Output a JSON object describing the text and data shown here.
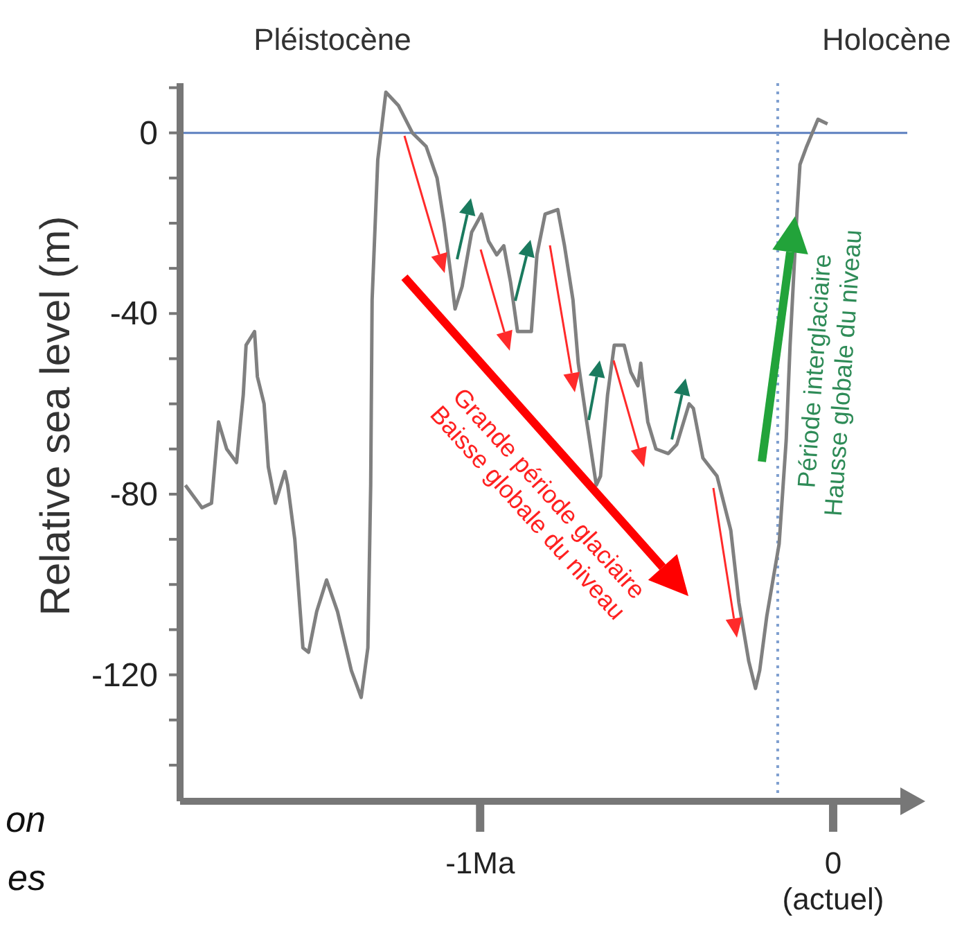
{
  "chart_data": {
    "type": "line",
    "ylabel": "Relative sea level (m)",
    "marker": "none",
    "color": "#808080",
    "x": [
      -1.835,
      -1.788,
      -1.761,
      -1.741,
      -1.718,
      -1.69,
      -1.671,
      -1.663,
      -1.639,
      -1.631,
      -1.612,
      -1.6,
      -1.58,
      -1.553,
      -1.545,
      -1.525,
      -1.502,
      -1.486,
      -1.463,
      -1.435,
      -1.404,
      -1.365,
      -1.337,
      -1.318,
      -1.31,
      -1.306,
      -1.29,
      -1.267,
      -1.231,
      -1.192,
      -1.153,
      -1.122,
      -1.102,
      -1.082,
      -1.071,
      -1.051,
      -1.024,
      -0.996,
      -0.976,
      -0.953,
      -0.933,
      -0.914,
      -0.894,
      -0.855,
      -0.839,
      -0.816,
      -0.78,
      -0.761,
      -0.737,
      -0.722,
      -0.698,
      -0.671,
      -0.659,
      -0.639,
      -0.62,
      -0.592,
      -0.573,
      -0.553,
      -0.545,
      -0.541,
      -0.525,
      -0.502,
      -0.467,
      -0.443,
      -0.408,
      -0.396,
      -0.369,
      -0.329,
      -0.29,
      -0.267,
      -0.239,
      -0.22,
      -0.208,
      -0.188,
      -0.153,
      -0.133,
      -0.122,
      -0.102,
      -0.094,
      -0.075,
      -0.043,
      -0.016
    ],
    "values": [
      -78,
      -83,
      -82,
      -64,
      -70,
      -73,
      -58,
      -47,
      -44,
      -54,
      -60,
      -74,
      -82,
      -75,
      -78,
      -90,
      -114,
      -115,
      -106,
      -99,
      -106,
      -119,
      -125,
      -114,
      -78,
      -37,
      -6,
      9,
      6,
      0,
      -3,
      -10,
      -20,
      -32,
      -39,
      -34,
      -22,
      -18,
      -24,
      -27,
      -25,
      -33,
      -44,
      -44,
      -27,
      -18,
      -17,
      -25,
      -37,
      -51,
      -64,
      -78,
      -76,
      -58,
      -47,
      -47,
      -53,
      -56,
      -51,
      -54,
      -64,
      -70,
      -71,
      -69,
      -60,
      -61,
      -72,
      -76,
      -88,
      -104,
      -117,
      -123,
      -119,
      -107,
      -91,
      -68,
      -47,
      -17,
      -7,
      -3,
      3,
      2
    ],
    "xlim": [
      -1.85,
      0.21
    ],
    "xticks": [
      {
        "value": -1,
        "label": "-1Ma"
      },
      {
        "value": 0,
        "label": "0\n(actuel)"
      }
    ],
    "ylim": [
      -148,
      11
    ],
    "yticks": [
      {
        "value": -140,
        "label": null
      },
      {
        "value": -130,
        "label": null
      },
      -120,
      {
        "value": -110,
        "label": null
      },
      {
        "value": -100,
        "label": null
      },
      {
        "value": -90,
        "label": null
      },
      -80,
      {
        "value": -70,
        "label": null
      },
      {
        "value": -60,
        "label": null
      },
      {
        "value": -50,
        "label": null
      },
      -40,
      {
        "value": -30,
        "label": null
      },
      {
        "value": -20,
        "label": null
      },
      {
        "value": -10,
        "label": null
      },
      0,
      {
        "value": 10,
        "label": null
      }
    ],
    "ref_lines": [
      {
        "axis": "y",
        "value": 0,
        "color": "#5b7fbf",
        "line_style": "solid"
      },
      {
        "axis": "x",
        "value": -0.157,
        "color": "#7f9fcf",
        "line_style": "dotted"
      }
    ],
    "annotations": [
      "Pléistocène",
      "Holocène",
      "Grande période glaciaire\nBaisse globale du niveau",
      "Période interglaciaire\nHausse globale du niveau",
      "on",
      "es"
    ]
  }
}
